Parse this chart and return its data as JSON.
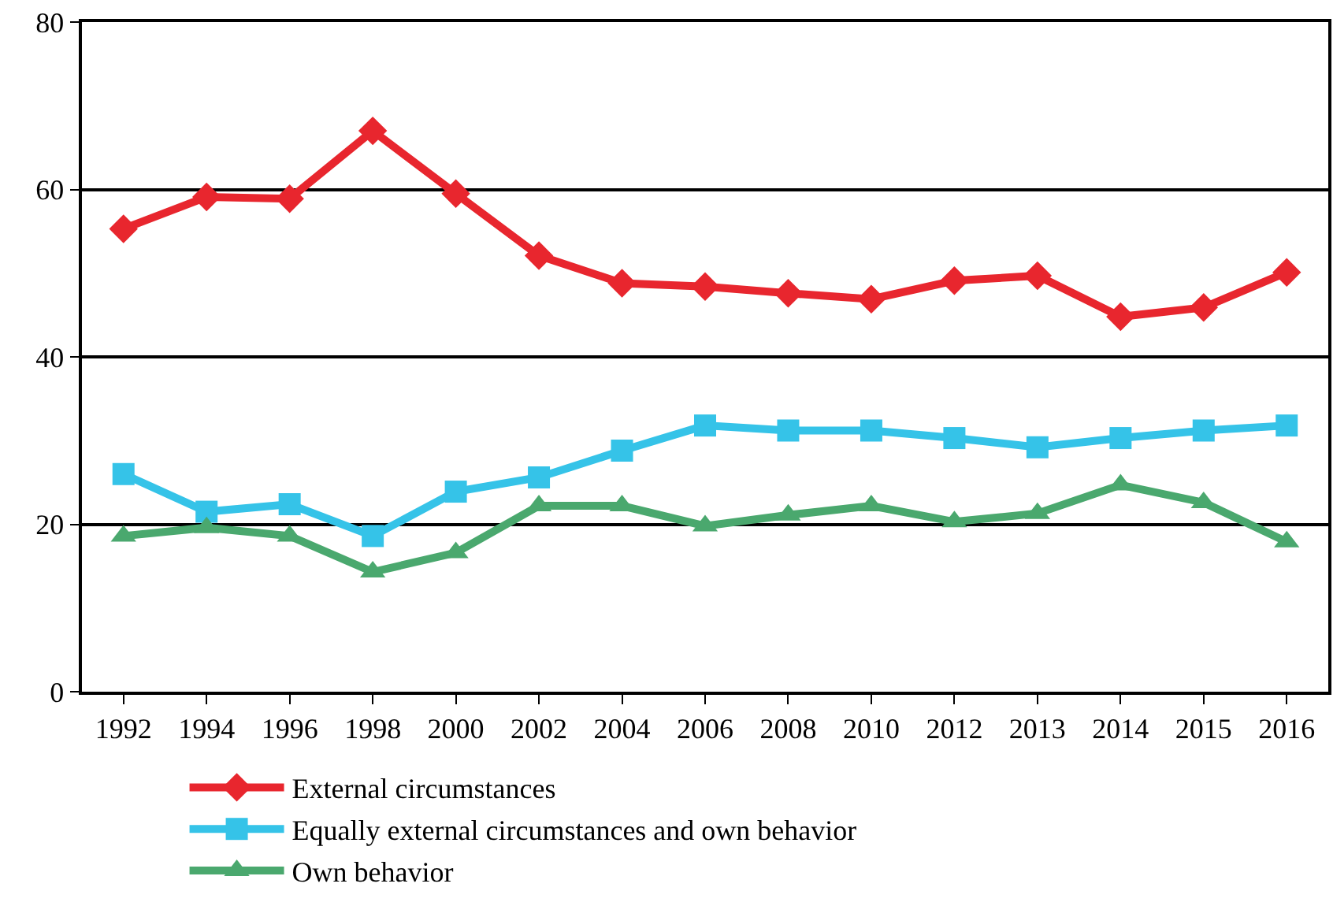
{
  "chart_data": {
    "type": "line",
    "categories": [
      "1992",
      "1994",
      "1996",
      "1998",
      "2000",
      "2002",
      "2004",
      "2006",
      "2008",
      "2010",
      "2012",
      "2013",
      "2014",
      "2015",
      "2016"
    ],
    "series": [
      {
        "name": "External circumstances",
        "color": "#e8262e",
        "marker": "diamond",
        "values": [
          55.3,
          59.1,
          58.9,
          67.0,
          59.5,
          52.1,
          48.8,
          48.4,
          47.6,
          46.9,
          49.1,
          49.7,
          44.8,
          45.9,
          50.1
        ]
      },
      {
        "name": "Equally external circumstances and own behavior",
        "color": "#35c3e8",
        "marker": "square",
        "values": [
          26.0,
          21.5,
          22.4,
          18.6,
          23.9,
          25.6,
          28.8,
          31.8,
          31.2,
          31.2,
          30.3,
          29.2,
          30.3,
          31.2,
          31.8
        ]
      },
      {
        "name": "Own behavior",
        "color": "#4aa86e",
        "marker": "triangle",
        "values": [
          18.6,
          19.6,
          18.6,
          14.3,
          16.6,
          22.2,
          22.2,
          19.8,
          21.1,
          22.2,
          20.3,
          21.3,
          24.7,
          22.6,
          17.9
        ]
      }
    ],
    "ylim": [
      0,
      80
    ],
    "yticks": [
      0,
      20,
      40,
      60,
      80
    ],
    "grid": "y",
    "legend": "bottom",
    "line_style": "solid"
  }
}
